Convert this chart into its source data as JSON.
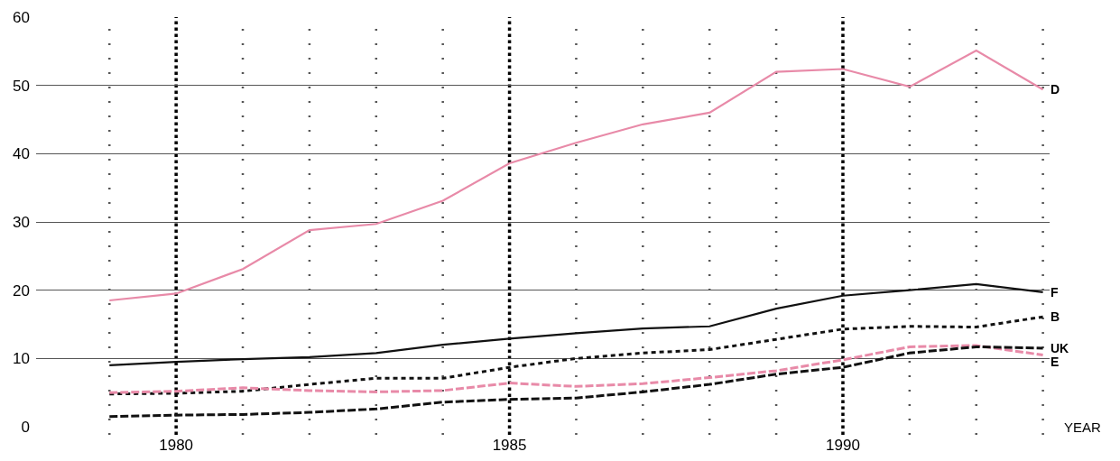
{
  "chart_data": {
    "type": "line",
    "xlabel": "YEAR",
    "x": [
      1979,
      1980,
      1981,
      1982,
      1983,
      1984,
      1985,
      1986,
      1987,
      1988,
      1989,
      1990,
      1991,
      1992,
      1993
    ],
    "series": [
      {
        "name": "D",
        "color": "#e88aa8",
        "line_style": "solid",
        "values": [
          18.5,
          19.5,
          23.1,
          28.8,
          29.7,
          33.1,
          38.6,
          41.6,
          44.3,
          46.0,
          52.0,
          52.4,
          49.8,
          55.1,
          49.4
        ]
      },
      {
        "name": "F",
        "color": "#111111",
        "line_style": "solid",
        "values": [
          9.0,
          9.5,
          9.9,
          10.2,
          10.8,
          12.0,
          12.9,
          13.7,
          14.4,
          14.7,
          17.3,
          19.2,
          20.0,
          20.9,
          19.7
        ]
      },
      {
        "name": "B",
        "color": "#111111",
        "line_style": "dotted",
        "values": [
          4.8,
          4.9,
          5.2,
          6.2,
          7.1,
          7.1,
          8.7,
          10.0,
          10.8,
          11.3,
          12.8,
          14.3,
          14.7,
          14.6,
          16.1
        ]
      },
      {
        "name": "E",
        "color": "#e88aa8",
        "line_style": "dashed",
        "values": [
          5.0,
          5.2,
          5.7,
          5.3,
          5.1,
          5.3,
          6.4,
          5.9,
          6.3,
          7.2,
          8.2,
          9.8,
          11.7,
          11.9,
          10.5
        ]
      },
      {
        "name": "UK",
        "color": "#111111",
        "line_style": "dashed",
        "values": [
          1.5,
          1.7,
          1.8,
          2.1,
          2.6,
          3.6,
          4.0,
          4.2,
          5.1,
          6.2,
          7.7,
          8.7,
          10.8,
          11.7,
          11.5
        ]
      }
    ],
    "xlim": [
      1977.9,
      1993.1
    ],
    "xticks": [
      {
        "value": 1979,
        "label": null
      },
      1980,
      {
        "value": 1981,
        "label": null
      },
      {
        "value": 1982,
        "label": null
      },
      {
        "value": 1983,
        "label": null
      },
      {
        "value": 1984,
        "label": null
      },
      1985,
      {
        "value": 1986,
        "label": null
      },
      {
        "value": 1987,
        "label": null
      },
      {
        "value": 1988,
        "label": null
      },
      {
        "value": 1989,
        "label": null
      },
      1990,
      {
        "value": 1991,
        "label": null
      },
      {
        "value": 1992,
        "label": null
      },
      {
        "value": 1993,
        "label": null
      }
    ],
    "ylim": [
      0,
      60
    ],
    "yticks": [
      0,
      10,
      20,
      30,
      40,
      50,
      60
    ],
    "grid": true,
    "legend": false,
    "marker": "none"
  }
}
